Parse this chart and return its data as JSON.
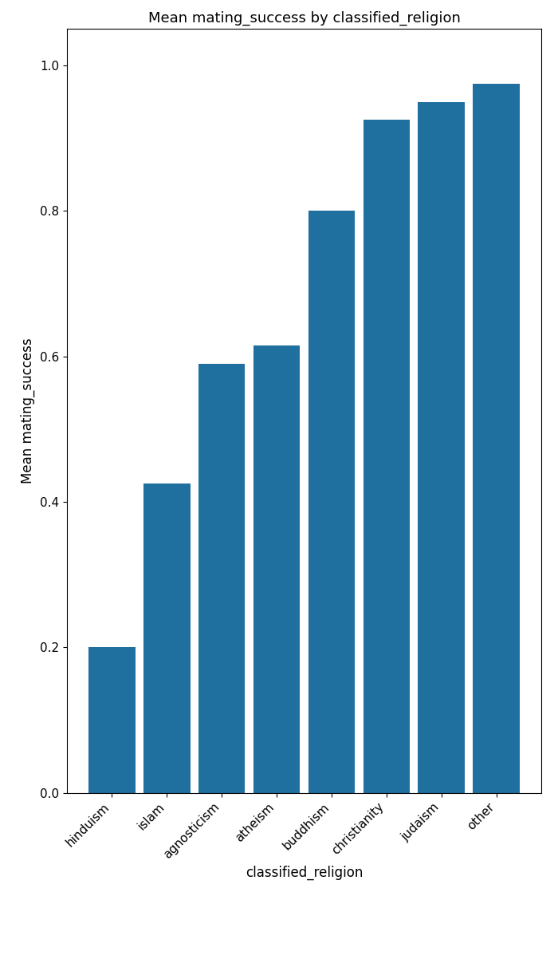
{
  "categories": [
    "hinduism",
    "islam",
    "agnosticism",
    "atheism",
    "buddhism",
    "christianity",
    "judaism",
    "other"
  ],
  "values": [
    0.2,
    0.425,
    0.59,
    0.615,
    0.8,
    0.925,
    0.95,
    0.975
  ],
  "bar_color": "#1f6f9f",
  "title": "Mean mating_success by classified_religion",
  "xlabel": "classified_religion",
  "ylabel": "Mean mating_success",
  "ylim": [
    0.0,
    1.05
  ],
  "yticks": [
    0.0,
    0.2,
    0.4,
    0.6,
    0.8,
    1.0
  ],
  "bar_width": 0.85
}
